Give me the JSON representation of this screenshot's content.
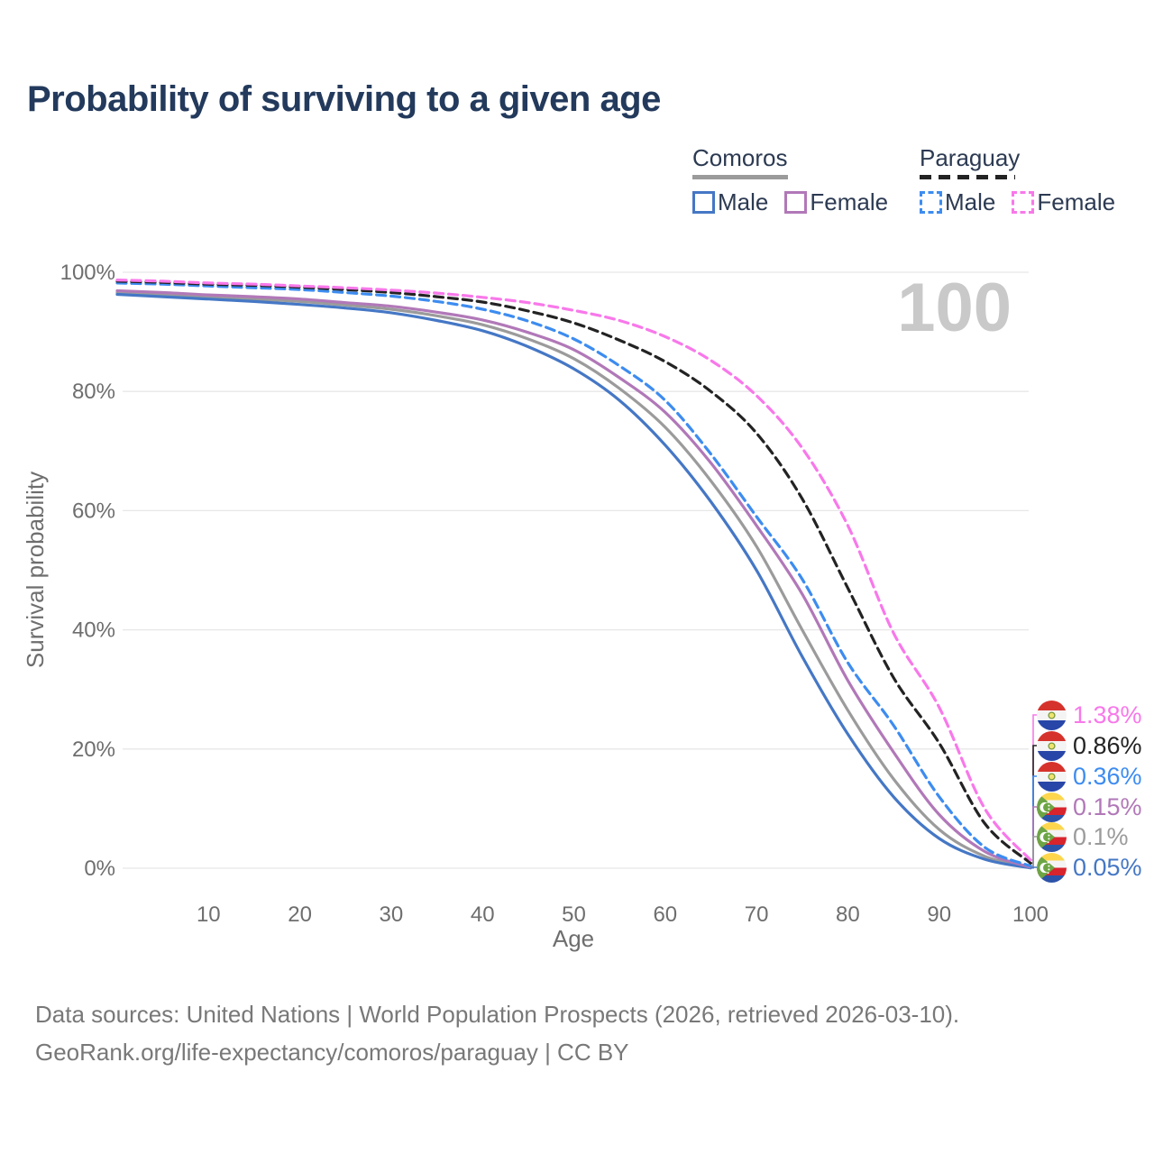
{
  "title": "Probability of surviving to a given age",
  "watermark": "100",
  "legend": {
    "groups": [
      {
        "id": "comoros",
        "label": "Comoros",
        "style": "solid",
        "underline_color": "#9b9b9b",
        "items": [
          {
            "label": "Male",
            "color": "#4577c5"
          },
          {
            "label": "Female",
            "color": "#b178b8"
          }
        ]
      },
      {
        "id": "paraguay",
        "label": "Paraguay",
        "style": "dashed",
        "underline_color": "#232323",
        "items": [
          {
            "label": "Male",
            "color": "#3d8cf0"
          },
          {
            "label": "Female",
            "color": "#f878ea"
          }
        ]
      }
    ]
  },
  "chart_data": {
    "type": "line",
    "title": "Probability of surviving to a given age",
    "xlabel": "Age",
    "ylabel": "Survival probability",
    "xlim": [
      0,
      100
    ],
    "ylim": [
      0,
      100
    ],
    "grid": "horizontal",
    "legend_position": "top-right",
    "x_ticks": [
      10,
      20,
      30,
      40,
      50,
      60,
      70,
      80,
      90,
      100
    ],
    "y_ticks": [
      {
        "value": 0,
        "label": "0%"
      },
      {
        "value": 20,
        "label": "20%"
      },
      {
        "value": 40,
        "label": "40%"
      },
      {
        "value": 60,
        "label": "60%"
      },
      {
        "value": 80,
        "label": "80%"
      },
      {
        "value": 100,
        "label": "100%"
      }
    ],
    "x": [
      0,
      5,
      10,
      15,
      20,
      25,
      30,
      35,
      40,
      45,
      50,
      55,
      60,
      65,
      70,
      75,
      80,
      85,
      90,
      95,
      100
    ],
    "series": [
      {
        "id": "comoros-all",
        "name": "Comoros",
        "color": "#9b9b9b",
        "dash": "solid",
        "values": [
          96.6,
          96.2,
          95.9,
          95.5,
          95.1,
          94.5,
          93.8,
          92.7,
          91.2,
          88.8,
          85.5,
          80.5,
          74.0,
          65.0,
          54.0,
          40.0,
          26.5,
          15.0,
          6.5,
          2.0,
          0.1
        ]
      },
      {
        "id": "comoros-male",
        "name": "Comoros Male",
        "color": "#4577c5",
        "dash": "solid",
        "values": [
          96.3,
          95.9,
          95.5,
          95.1,
          94.6,
          94.0,
          93.2,
          91.9,
          90.2,
          87.5,
          83.8,
          78.5,
          71.0,
          61.5,
          50.0,
          35.5,
          22.5,
          12.0,
          5.0,
          1.5,
          0.05
        ]
      },
      {
        "id": "comoros-female",
        "name": "Comoros Female",
        "color": "#b178b8",
        "dash": "solid",
        "values": [
          96.9,
          96.6,
          96.2,
          95.9,
          95.5,
          94.9,
          94.3,
          93.3,
          92.0,
          89.9,
          87.0,
          82.3,
          76.5,
          68.0,
          57.5,
          46.0,
          31.5,
          19.5,
          9.0,
          2.8,
          0.15
        ]
      },
      {
        "id": "paraguay-male",
        "name": "Paraguay Male",
        "color": "#3d8cf0",
        "dash": "dashed",
        "values": [
          98.2,
          98.0,
          97.7,
          97.4,
          97.1,
          96.6,
          96.0,
          95.1,
          93.8,
          91.8,
          88.8,
          84.3,
          78.5,
          69.5,
          59.0,
          48.5,
          34.5,
          24.0,
          12.0,
          3.5,
          0.36
        ]
      },
      {
        "id": "paraguay-all",
        "name": "Paraguay",
        "color": "#232323",
        "dash": "dashed",
        "values": [
          98.5,
          98.3,
          98.0,
          97.8,
          97.5,
          97.1,
          96.6,
          95.9,
          95.0,
          93.5,
          91.5,
          88.6,
          85.0,
          80.0,
          73.0,
          62.0,
          47.0,
          32.0,
          21.0,
          7.5,
          0.86
        ]
      },
      {
        "id": "paraguay-female",
        "name": "Paraguay Female",
        "color": "#f878ea",
        "dash": "dashed",
        "values": [
          98.7,
          98.5,
          98.2,
          98.0,
          97.7,
          97.4,
          97.0,
          96.5,
          95.8,
          94.9,
          93.6,
          91.9,
          89.2,
          85.2,
          79.3,
          70.5,
          57.5,
          39.5,
          27.0,
          10.0,
          1.38
        ]
      }
    ]
  },
  "end_labels": [
    {
      "label": "1.38%",
      "value": 1.38,
      "flag": "paraguay",
      "series": "paraguay-female",
      "color": "#f878ea"
    },
    {
      "label": "0.86%",
      "value": 0.86,
      "flag": "paraguay",
      "series": "paraguay-all",
      "color": "#232323"
    },
    {
      "label": "0.36%",
      "value": 0.36,
      "flag": "paraguay",
      "series": "paraguay-male",
      "color": "#3d8cf0"
    },
    {
      "label": "0.15%",
      "value": 0.15,
      "flag": "comoros",
      "series": "comoros-female",
      "color": "#b178b8"
    },
    {
      "label": "0.1%",
      "value": 0.1,
      "flag": "comoros",
      "series": "comoros-all",
      "color": "#9b9b9b"
    },
    {
      "label": "0.05%",
      "value": 0.05,
      "flag": "comoros",
      "series": "comoros-male",
      "color": "#4577c5"
    }
  ],
  "footer": {
    "line1": "Data sources: United Nations | World Population Prospects (2026, retrieved 2026-03-10).",
    "line2": "GeoRank.org/life-expectancy/comoros/paraguay | CC BY"
  }
}
